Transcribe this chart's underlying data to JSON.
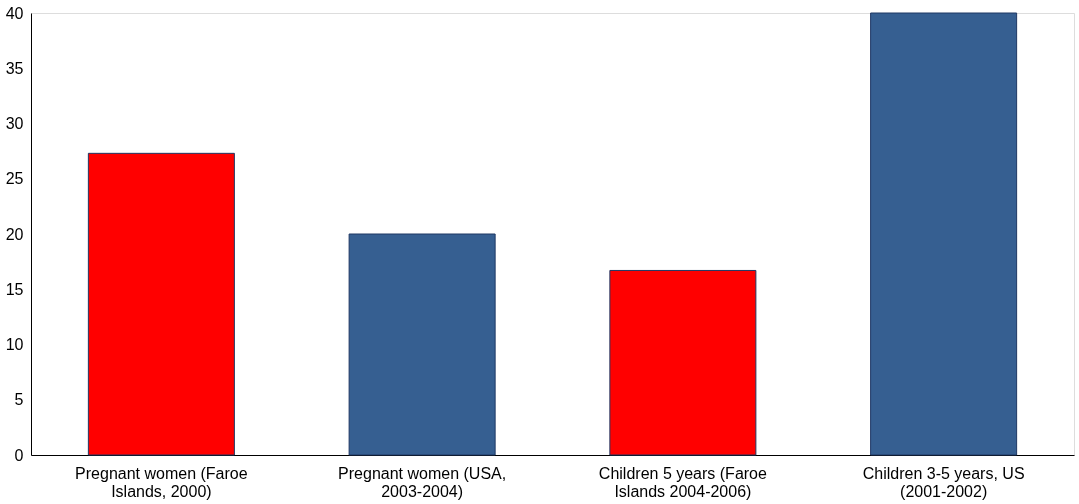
{
  "chart_data": {
    "type": "bar",
    "categories": [
      "Pregnant women (Faroe Islands, 2000)",
      "Pregnant women (USA, 2003-2004)",
      "Children 5 years (Faroe Islands 2004-2006)",
      "Children 3-5 years, US (2001-2002)"
    ],
    "values": [
      27.3,
      20,
      16.7,
      40
    ],
    "colors": [
      "#ff0000",
      "#365f91",
      "#ff0000",
      "#365f91"
    ],
    "ylim": [
      0,
      40
    ],
    "yticks": [
      0,
      5,
      10,
      15,
      20,
      25,
      30,
      35,
      40
    ],
    "grid": false
  }
}
